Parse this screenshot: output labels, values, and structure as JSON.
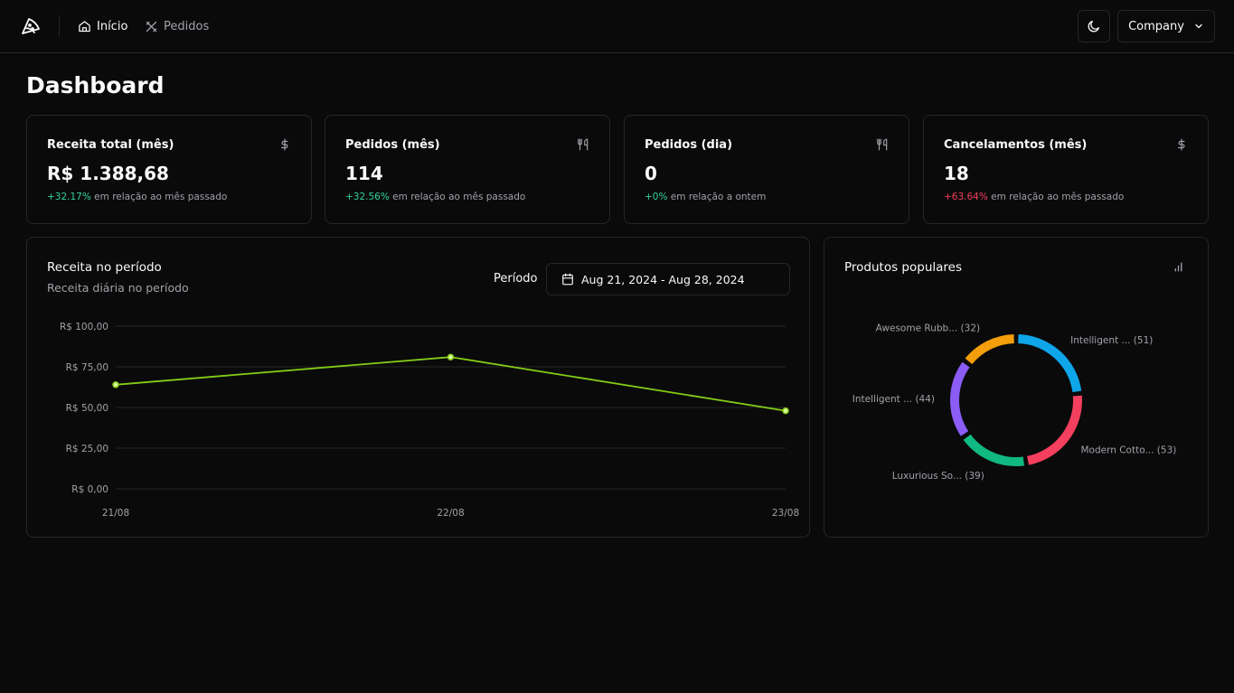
{
  "header": {
    "nav": [
      {
        "label": "Início",
        "icon": "home-icon"
      },
      {
        "label": "Pedidos",
        "icon": "utensils-crossed-icon"
      }
    ],
    "theme_icon": "moon-icon",
    "company": {
      "label": "Company",
      "icon": "chevron-down-icon"
    }
  },
  "page": {
    "title": "Dashboard"
  },
  "stats": [
    {
      "title": "Receita total (mês)",
      "value": "R$ 1.388,68",
      "diff": "+32.17%",
      "diff_text": " em relação ao mês passado",
      "icon": "dollar-sign-icon",
      "trend": "positive"
    },
    {
      "title": "Pedidos (mês)",
      "value": "114",
      "diff": "+32.56%",
      "diff_text": " em relação ao mês passado",
      "icon": "utensils-icon",
      "trend": "positive"
    },
    {
      "title": "Pedidos (dia)",
      "value": "0",
      "diff": "+0%",
      "diff_text": " em relação a ontem",
      "icon": "utensils-icon",
      "trend": "positive"
    },
    {
      "title": "Cancelamentos (mês)",
      "value": "18",
      "diff": "+63.64%",
      "diff_text": " em relação ao mês passado",
      "icon": "dollar-sign-icon",
      "trend": "negative"
    }
  ],
  "revenue": {
    "title": "Receita no período",
    "subtitle": "Receita diária no período",
    "period_label": "Período",
    "date_range": "Aug 21, 2024 - Aug 28, 2024"
  },
  "popular": {
    "title": "Produtos populares",
    "icon": "bar-chart-icon"
  },
  "colors": {
    "background": "#0a0a0a",
    "border": "#262626",
    "muted": "#a1a1aa",
    "line": "#84cc16",
    "positive": "#34d399",
    "negative": "#f43f5e"
  },
  "chart_data": [
    {
      "type": "line",
      "x": [
        "21/08",
        "22/08",
        "23/08"
      ],
      "series": [
        {
          "values": [
            64,
            81,
            48
          ]
        }
      ],
      "yticks": [
        "R$ 0,00",
        "R$ 25,00",
        "R$ 50,00",
        "R$ 75,00",
        "R$ 100,00"
      ],
      "ylim": [
        0,
        100
      ],
      "grid": true,
      "color": "#84cc16"
    },
    {
      "type": "pie",
      "style": "donut",
      "slices": [
        {
          "label": "Intelligent ... (51)",
          "value": 51,
          "color": "#0ea5e9"
        },
        {
          "label": "Modern Cotto... (53)",
          "value": 53,
          "color": "#f43f5e"
        },
        {
          "label": "Luxurious So... (39)",
          "value": 39,
          "color": "#10b981"
        },
        {
          "label": "Intelligent ... (44)",
          "value": 44,
          "color": "#8b5cf6"
        },
        {
          "label": "Awesome Rubb... (32)",
          "value": 32,
          "color": "#f59e0b"
        }
      ]
    }
  ]
}
